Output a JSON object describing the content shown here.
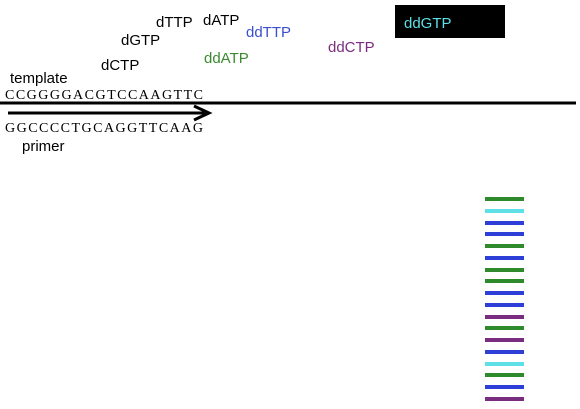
{
  "dntps": [
    "dTTP",
    "dATP",
    "dGTP",
    "dCTP"
  ],
  "ddntps": [
    "ddTTP",
    "ddATP",
    "ddCTP",
    "ddGTP"
  ],
  "template": {
    "label": "template",
    "sequence": "CCGGGGACGTCCAAGTTC"
  },
  "primer": {
    "label": "primer",
    "sequence": "GGCCCCTGCAGGTTCAAG"
  }
}
